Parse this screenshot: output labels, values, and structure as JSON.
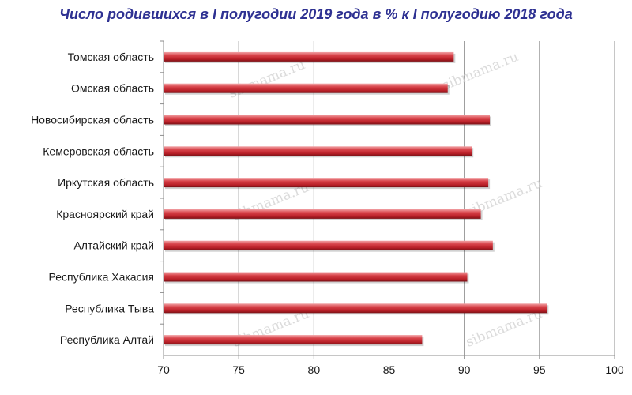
{
  "chart_data": {
    "type": "bar",
    "orientation": "horizontal",
    "title": "Число родившихся в I полугодии 2019 года в % к I полугодию 2018 года",
    "categories": [
      "Томская область",
      "Омская область",
      "Новосибирская область",
      "Кемеровская область",
      "Иркутская область",
      "Красноярский край",
      "Алтайский край",
      "Республика Хакасия",
      "Республика Тыва",
      "Республика Алтай"
    ],
    "values": [
      89.3,
      88.9,
      91.7,
      90.5,
      91.6,
      91.1,
      91.9,
      90.2,
      95.5,
      87.2
    ],
    "xlim": [
      70,
      100
    ],
    "x_ticks": [
      70,
      75,
      80,
      85,
      90,
      95,
      100
    ],
    "grid": "vertical",
    "bar_color": "#c0262e",
    "title_color": "#2e3192",
    "watermark": "sibmama.ru"
  }
}
